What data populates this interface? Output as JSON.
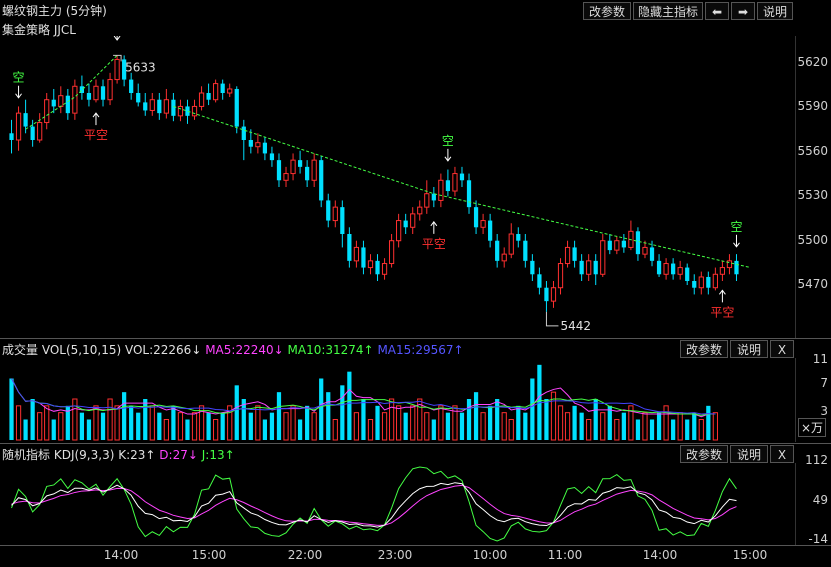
{
  "header": {
    "title": "螺纹钢主力 (5分钟)",
    "strategy": "集金策略 JJCL",
    "buttons": [
      "改参数",
      "隐藏主指标",
      "⬅",
      "➡",
      "说明"
    ]
  },
  "main": {
    "y_ticks": [
      "5620",
      "5590",
      "5560",
      "5530",
      "5500",
      "5470"
    ],
    "high_label": "5633",
    "low_label": "5442",
    "signals": {
      "kong": "空",
      "ping_kong": "平空"
    }
  },
  "volume": {
    "title": "成交量",
    "params": "VOL(5,10,15)",
    "vol": "VOL:22266↓",
    "ma5": "MA5:22240↓",
    "ma10": "MA10:31274↑",
    "ma15": "MA15:29567↑",
    "buttons": [
      "改参数",
      "说明",
      "X"
    ],
    "y_ticks": [
      "11",
      "7",
      "3"
    ],
    "unit": "×万"
  },
  "kdj": {
    "title": "随机指标",
    "params": "KDJ(9,3,3)",
    "k": "K:23↑",
    "d": "D:27↓",
    "j": "J:13↑",
    "buttons": [
      "改参数",
      "说明",
      "X"
    ],
    "y_ticks": [
      "112",
      "49",
      "-14"
    ]
  },
  "x_axis": [
    "14:00",
    "15:00",
    "22:00",
    "23:00",
    "10:00",
    "11:00",
    "14:00",
    "15:00"
  ],
  "colors": {
    "up": "#ff3030",
    "down": "#00e0ff",
    "ma5": "#ff44ff",
    "ma10": "#44ff44",
    "ma15": "#4444ff",
    "trend": "#44ff44"
  },
  "chart_data": {
    "type": "candlestick",
    "ylim": [
      5430,
      5640
    ],
    "candles": [
      [
        5575,
        5570,
        5585,
        5560
      ],
      [
        5570,
        5590,
        5595,
        5562
      ],
      [
        5590,
        5580,
        5600,
        5575
      ],
      [
        5580,
        5570,
        5585,
        5565
      ],
      [
        5570,
        5583,
        5590,
        5568
      ],
      [
        5583,
        5600,
        5605,
        5578
      ],
      [
        5600,
        5595,
        5608,
        5590
      ],
      [
        5595,
        5603,
        5610,
        5590
      ],
      [
        5603,
        5590,
        5608,
        5585
      ],
      [
        5590,
        5610,
        5615,
        5585
      ],
      [
        5610,
        5605,
        5618,
        5600
      ],
      [
        5605,
        5600,
        5612,
        5595
      ],
      [
        5600,
        5610,
        5615,
        5598
      ],
      [
        5610,
        5600,
        5615,
        5595
      ],
      [
        5600,
        5615,
        5620,
        5596
      ],
      [
        5615,
        5630,
        5633,
        5612
      ],
      [
        5630,
        5615,
        5633,
        5610
      ],
      [
        5615,
        5605,
        5620,
        5600
      ],
      [
        5605,
        5598,
        5612,
        5595
      ],
      [
        5598,
        5592,
        5605,
        5588
      ],
      [
        5592,
        5600,
        5605,
        5588
      ],
      [
        5600,
        5590,
        5605,
        5585
      ],
      [
        5590,
        5600,
        5608,
        5586
      ],
      [
        5600,
        5588,
        5605,
        5584
      ],
      [
        5588,
        5595,
        5600,
        5584
      ],
      [
        5595,
        5588,
        5600,
        5582
      ],
      [
        5588,
        5595,
        5600,
        5585
      ],
      [
        5595,
        5605,
        5610,
        5592
      ],
      [
        5605,
        5600,
        5612,
        5596
      ],
      [
        5600,
        5612,
        5615,
        5598
      ],
      [
        5612,
        5605,
        5615,
        5600
      ],
      [
        5605,
        5608,
        5612,
        5602
      ],
      [
        5608,
        5580,
        5610,
        5575
      ],
      [
        5580,
        5570,
        5585,
        5555
      ],
      [
        5570,
        5565,
        5578,
        5560
      ],
      [
        5565,
        5568,
        5575,
        5560
      ],
      [
        5568,
        5560,
        5572,
        5555
      ],
      [
        5560,
        5555,
        5565,
        5550
      ],
      [
        5555,
        5540,
        5560,
        5535
      ],
      [
        5540,
        5545,
        5550,
        5535
      ],
      [
        5545,
        5555,
        5560,
        5540
      ],
      [
        5555,
        5550,
        5562,
        5545
      ],
      [
        5550,
        5540,
        5555,
        5535
      ],
      [
        5540,
        5555,
        5560,
        5535
      ],
      [
        5555,
        5525,
        5558,
        5520
      ],
      [
        5525,
        5510,
        5530,
        5505
      ],
      [
        5510,
        5520,
        5525,
        5505
      ],
      [
        5520,
        5500,
        5525,
        5490
      ],
      [
        5500,
        5480,
        5505,
        5475
      ],
      [
        5480,
        5490,
        5495,
        5475
      ],
      [
        5490,
        5475,
        5495,
        5470
      ],
      [
        5475,
        5480,
        5485,
        5470
      ],
      [
        5480,
        5470,
        5485,
        5465
      ],
      [
        5470,
        5478,
        5482,
        5466
      ],
      [
        5478,
        5495,
        5500,
        5475
      ],
      [
        5495,
        5510,
        5515,
        5490
      ],
      [
        5510,
        5505,
        5515,
        5500
      ],
      [
        5505,
        5515,
        5520,
        5500
      ],
      [
        5515,
        5520,
        5525,
        5510
      ],
      [
        5520,
        5530,
        5540,
        5515
      ],
      [
        5530,
        5525,
        5535,
        5520
      ],
      [
        5525,
        5540,
        5545,
        5520
      ],
      [
        5540,
        5532,
        5548,
        5528
      ],
      [
        5532,
        5545,
        5550,
        5528
      ],
      [
        5545,
        5540,
        5550,
        5535
      ],
      [
        5540,
        5520,
        5545,
        5515
      ],
      [
        5520,
        5505,
        5525,
        5500
      ],
      [
        5505,
        5510,
        5515,
        5500
      ],
      [
        5510,
        5495,
        5515,
        5490
      ],
      [
        5495,
        5480,
        5500,
        5475
      ],
      [
        5480,
        5485,
        5490,
        5475
      ],
      [
        5485,
        5500,
        5508,
        5482
      ],
      [
        5500,
        5495,
        5505,
        5490
      ],
      [
        5495,
        5480,
        5500,
        5475
      ],
      [
        5480,
        5470,
        5485,
        5465
      ],
      [
        5470,
        5460,
        5475,
        5455
      ],
      [
        5460,
        5450,
        5465,
        5442
      ],
      [
        5450,
        5460,
        5465,
        5445
      ],
      [
        5460,
        5478,
        5482,
        5455
      ],
      [
        5478,
        5490,
        5495,
        5475
      ],
      [
        5490,
        5480,
        5495,
        5475
      ],
      [
        5480,
        5470,
        5485,
        5465
      ],
      [
        5470,
        5480,
        5485,
        5465
      ],
      [
        5480,
        5470,
        5485,
        5462
      ],
      [
        5470,
        5495,
        5500,
        5468
      ],
      [
        5495,
        5488,
        5500,
        5485
      ],
      [
        5488,
        5495,
        5498,
        5485
      ],
      [
        5495,
        5490,
        5500,
        5486
      ],
      [
        5490,
        5502,
        5510,
        5488
      ],
      [
        5502,
        5485,
        5505,
        5480
      ],
      [
        5485,
        5490,
        5495,
        5482
      ],
      [
        5490,
        5480,
        5495,
        5476
      ],
      [
        5480,
        5470,
        5485,
        5468
      ],
      [
        5470,
        5478,
        5482,
        5466
      ],
      [
        5478,
        5470,
        5482,
        5466
      ],
      [
        5470,
        5475,
        5480,
        5466
      ],
      [
        5475,
        5465,
        5478,
        5462
      ],
      [
        5465,
        5460,
        5470,
        5455
      ],
      [
        5460,
        5468,
        5472,
        5455
      ],
      [
        5468,
        5460,
        5472,
        5455
      ],
      [
        5460,
        5470,
        5475,
        5458
      ],
      [
        5470,
        5475,
        5480,
        5465
      ],
      [
        5475,
        5480,
        5485,
        5470
      ],
      [
        5480,
        5470,
        5485,
        5465
      ]
    ],
    "volumes": [
      9,
      5,
      3,
      6,
      4,
      5,
      3,
      4,
      5,
      6,
      4,
      3,
      5,
      4,
      6,
      5,
      7,
      5,
      4,
      6,
      5,
      4,
      3,
      5,
      4,
      3,
      4,
      5,
      4,
      3,
      4,
      5,
      8,
      6,
      4,
      5,
      3,
      4,
      7,
      4,
      5,
      3,
      5,
      4,
      9,
      7,
      3,
      8,
      10,
      4,
      6,
      3,
      5,
      4,
      6,
      5,
      4,
      5,
      6,
      4,
      3,
      5,
      4,
      5,
      4,
      6,
      7,
      4,
      5,
      6,
      4,
      3,
      5,
      4,
      9,
      11,
      6,
      7,
      5,
      4,
      5,
      4,
      3,
      6,
      4,
      5,
      3,
      4,
      5,
      3,
      4,
      3,
      4,
      5,
      3,
      4,
      3,
      4,
      3,
      5,
      4
    ],
    "kdj_ylim": [
      -14,
      112
    ]
  }
}
